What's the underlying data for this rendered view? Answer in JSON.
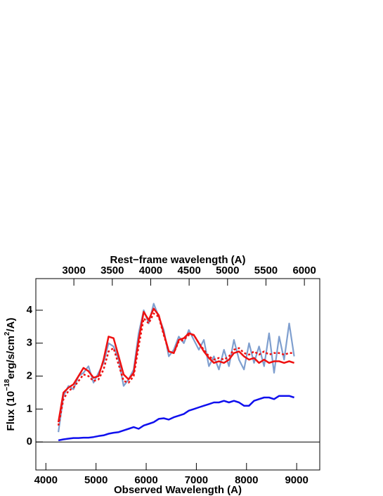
{
  "chart_data": {
    "type": "line",
    "x_label": "Observed Wavelength (A)",
    "x2_label": "Rest−frame wavelength (A)",
    "y_label": [
      "Flux (10",
      "−18",
      "erg/s/cm",
      "2",
      "/A)"
    ],
    "xlim": [
      3800,
      9460
    ],
    "xticks": [
      4000,
      5000,
      6000,
      7000,
      8000,
      9000
    ],
    "x2lim": [
      2505,
      6200
    ],
    "x2ticks": [
      3000,
      3500,
      4000,
      4500,
      5000,
      5500,
      6000
    ],
    "ylim": [
      -0.85,
      4.96
    ],
    "yticks": [
      0,
      1,
      2,
      3,
      4
    ],
    "zero_line": true,
    "x": [
      4250,
      4350,
      4450,
      4550,
      4650,
      4750,
      4850,
      4950,
      5050,
      5150,
      5250,
      5350,
      5450,
      5550,
      5650,
      5750,
      5850,
      5950,
      6050,
      6150,
      6250,
      6350,
      6450,
      6550,
      6650,
      6750,
      6850,
      6950,
      7050,
      7150,
      7250,
      7350,
      7450,
      7550,
      7650,
      7750,
      7850,
      7950,
      8050,
      8150,
      8250,
      8350,
      8450,
      8550,
      8650,
      8750,
      8850,
      8950
    ],
    "series": [
      {
        "color": "#7f9fcf",
        "width": 2.2,
        "dash": "none",
        "values": [
          0.3,
          1.4,
          1.7,
          1.6,
          2.0,
          2.1,
          2.3,
          1.8,
          2.1,
          2.4,
          3.0,
          2.9,
          2.5,
          1.7,
          1.9,
          2.2,
          3.3,
          4.0,
          3.6,
          4.2,
          3.8,
          3.4,
          2.6,
          2.8,
          3.2,
          3.0,
          3.4,
          3.1,
          2.8,
          3.1,
          2.3,
          2.6,
          2.2,
          2.8,
          2.3,
          3.1,
          2.5,
          2.2,
          3.0,
          2.4,
          2.9,
          2.3,
          3.3,
          2.1,
          3.2,
          2.5,
          3.6,
          2.6
        ]
      },
      {
        "color": "#ee1111",
        "width": 2.5,
        "dash": "3,3",
        "values": [
          0.5,
          1.3,
          1.55,
          1.65,
          1.85,
          2.05,
          2.0,
          1.85,
          1.9,
          2.2,
          2.75,
          2.85,
          2.35,
          1.85,
          1.8,
          2.0,
          2.9,
          3.75,
          3.6,
          3.9,
          3.8,
          3.25,
          2.75,
          2.7,
          3.05,
          3.1,
          3.25,
          3.25,
          3.0,
          2.8,
          2.6,
          2.5,
          2.55,
          2.5,
          2.6,
          2.8,
          2.85,
          2.7,
          2.65,
          2.75,
          2.65,
          2.75,
          2.65,
          2.7,
          2.7,
          2.65,
          2.7,
          2.7
        ]
      },
      {
        "color": "#ee1111",
        "width": 2.5,
        "dash": "none",
        "values": [
          0.6,
          1.5,
          1.65,
          1.75,
          2.0,
          2.25,
          2.15,
          1.95,
          2.0,
          2.5,
          3.2,
          3.15,
          2.6,
          2.05,
          1.9,
          2.1,
          3.1,
          3.95,
          3.7,
          4.05,
          3.85,
          3.3,
          2.75,
          2.7,
          3.1,
          3.15,
          3.3,
          3.25,
          3.0,
          2.75,
          2.55,
          2.4,
          2.45,
          2.4,
          2.5,
          2.7,
          2.75,
          2.6,
          2.5,
          2.55,
          2.4,
          2.5,
          2.4,
          2.45,
          2.45,
          2.4,
          2.45,
          2.4
        ]
      },
      {
        "color": "#1010ee",
        "width": 2.5,
        "dash": "none",
        "values": [
          0.05,
          0.08,
          0.1,
          0.12,
          0.12,
          0.13,
          0.13,
          0.15,
          0.18,
          0.2,
          0.25,
          0.28,
          0.3,
          0.35,
          0.4,
          0.45,
          0.4,
          0.5,
          0.55,
          0.6,
          0.7,
          0.72,
          0.68,
          0.75,
          0.8,
          0.85,
          0.95,
          1.0,
          1.05,
          1.1,
          1.15,
          1.2,
          1.2,
          1.25,
          1.2,
          1.25,
          1.2,
          1.1,
          1.1,
          1.25,
          1.3,
          1.35,
          1.35,
          1.3,
          1.4,
          1.4,
          1.4,
          1.35
        ]
      }
    ]
  }
}
